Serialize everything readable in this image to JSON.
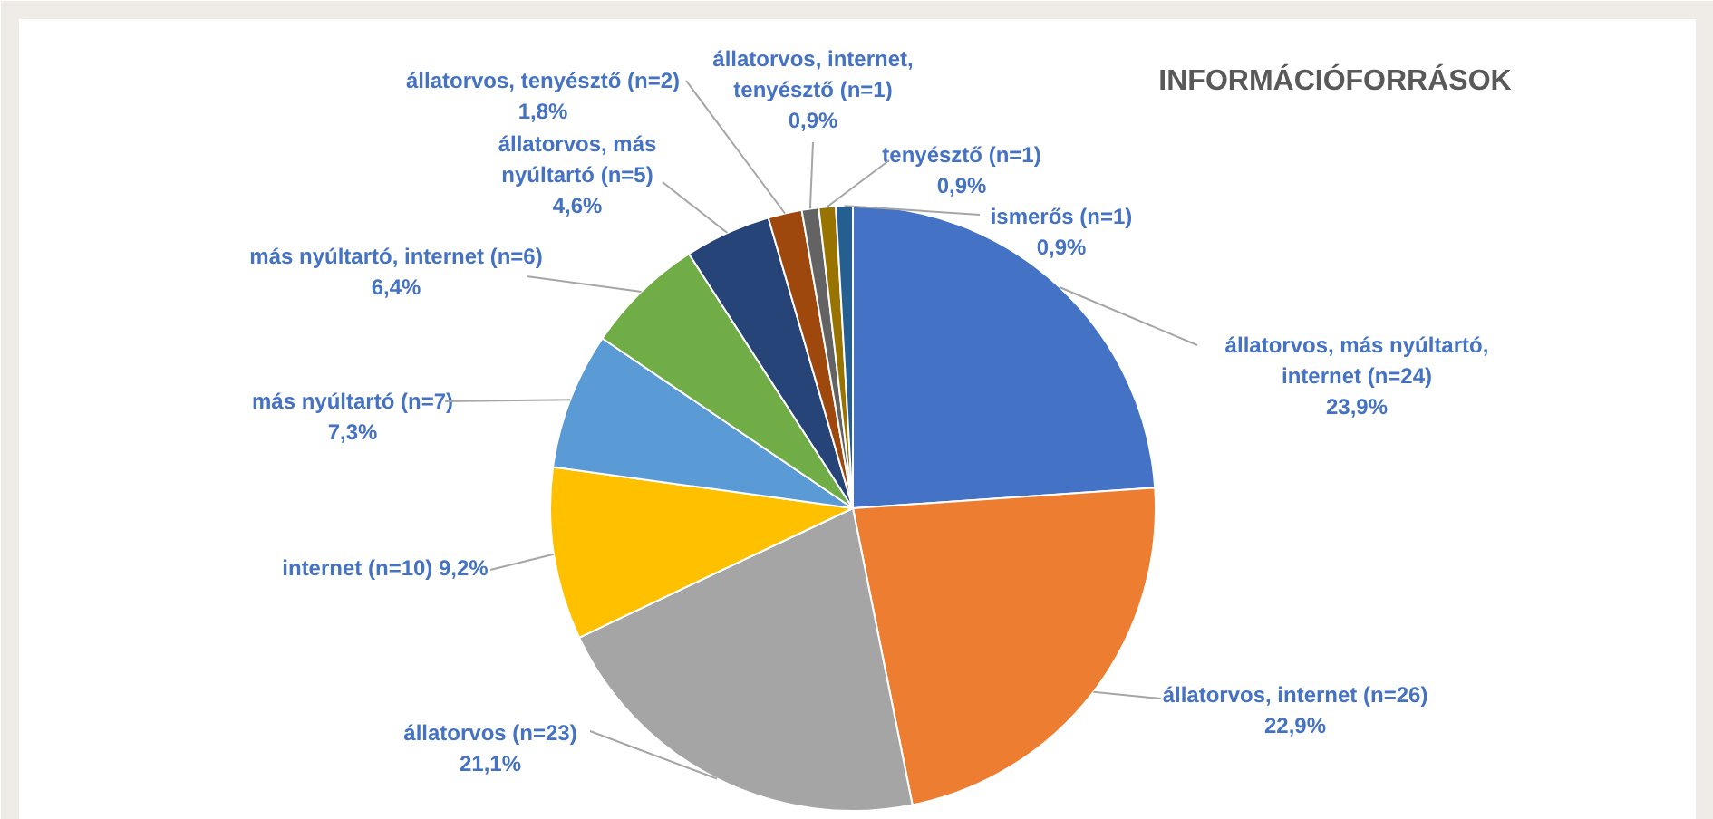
{
  "chart_data": {
    "type": "pie",
    "title": "INFORMÁCIÓFORRÁSOK",
    "categories": [
      "állatorvos, más nyúltartó, internet (n=24)",
      "állatorvos, internet (n=26)",
      "állatorvos (n=23)",
      "internet (n=10)",
      "más nyúltartó (n=7)",
      "más nyúltartó, internet (n=6)",
      "állatorvos, más nyúltartó (n=5)",
      "állatorvos, tenyésztő (n=2)",
      "állatorvos, internet, tenyésztő (n=1)",
      "tenyésztő (n=1)",
      "ismerős (n=1)"
    ],
    "values": [
      23.9,
      22.9,
      21.1,
      9.2,
      7.3,
      6.4,
      4.6,
      1.8,
      0.9,
      0.9,
      0.9
    ],
    "value_labels": [
      "23,9%",
      "22,9%",
      "21,1%",
      "9,2%",
      "7,3%",
      "6,4%",
      "4,6%",
      "1,8%",
      "0,9%",
      "0,9%",
      "0,9%"
    ],
    "colors": [
      "#4472c4",
      "#ed7d31",
      "#a5a5a5",
      "#ffc000",
      "#5b9bd5",
      "#70ad47",
      "#264478",
      "#9e480e",
      "#636363",
      "#997300",
      "#255e91"
    ]
  }
}
